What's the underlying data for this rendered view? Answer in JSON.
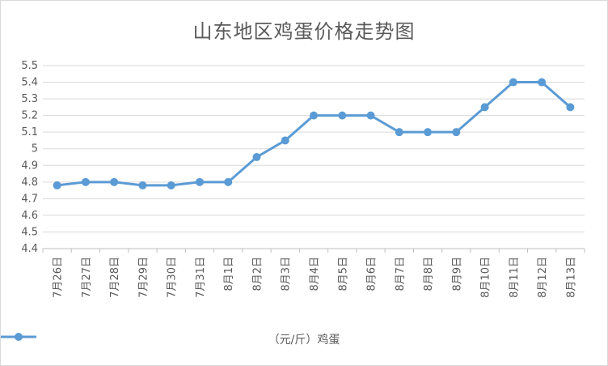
{
  "chart_data": {
    "type": "line",
    "title": "山东地区鸡蛋价格走势图",
    "categories": [
      "7月26日",
      "7月27日",
      "7月28日",
      "7月29日",
      "7月30日",
      "7月31日",
      "8月1日",
      "8月2日",
      "8月3日",
      "8月4日",
      "8月5日",
      "8月6日",
      "8月7日",
      "8月8日",
      "8月9日",
      "8月10日",
      "8月11日",
      "8月12日",
      "8月13日"
    ],
    "series": [
      {
        "name": "（元/斤）鸡蛋",
        "values": [
          4.78,
          4.8,
          4.8,
          4.78,
          4.78,
          4.8,
          4.8,
          4.95,
          5.05,
          5.2,
          5.2,
          5.2,
          5.1,
          5.1,
          5.1,
          5.25,
          5.4,
          5.4,
          5.25
        ]
      }
    ],
    "ylim": [
      4.4,
      5.5
    ],
    "yticks": [
      "4.4",
      "4.5",
      "4.6",
      "4.7",
      "4.8",
      "4.9",
      "5",
      "5.1",
      "5.2",
      "5.3",
      "5.4",
      "5.5"
    ],
    "xlabel": "",
    "ylabel": "",
    "grid": true,
    "legend_position": "bottom",
    "series_color": "#5b9bd5"
  }
}
